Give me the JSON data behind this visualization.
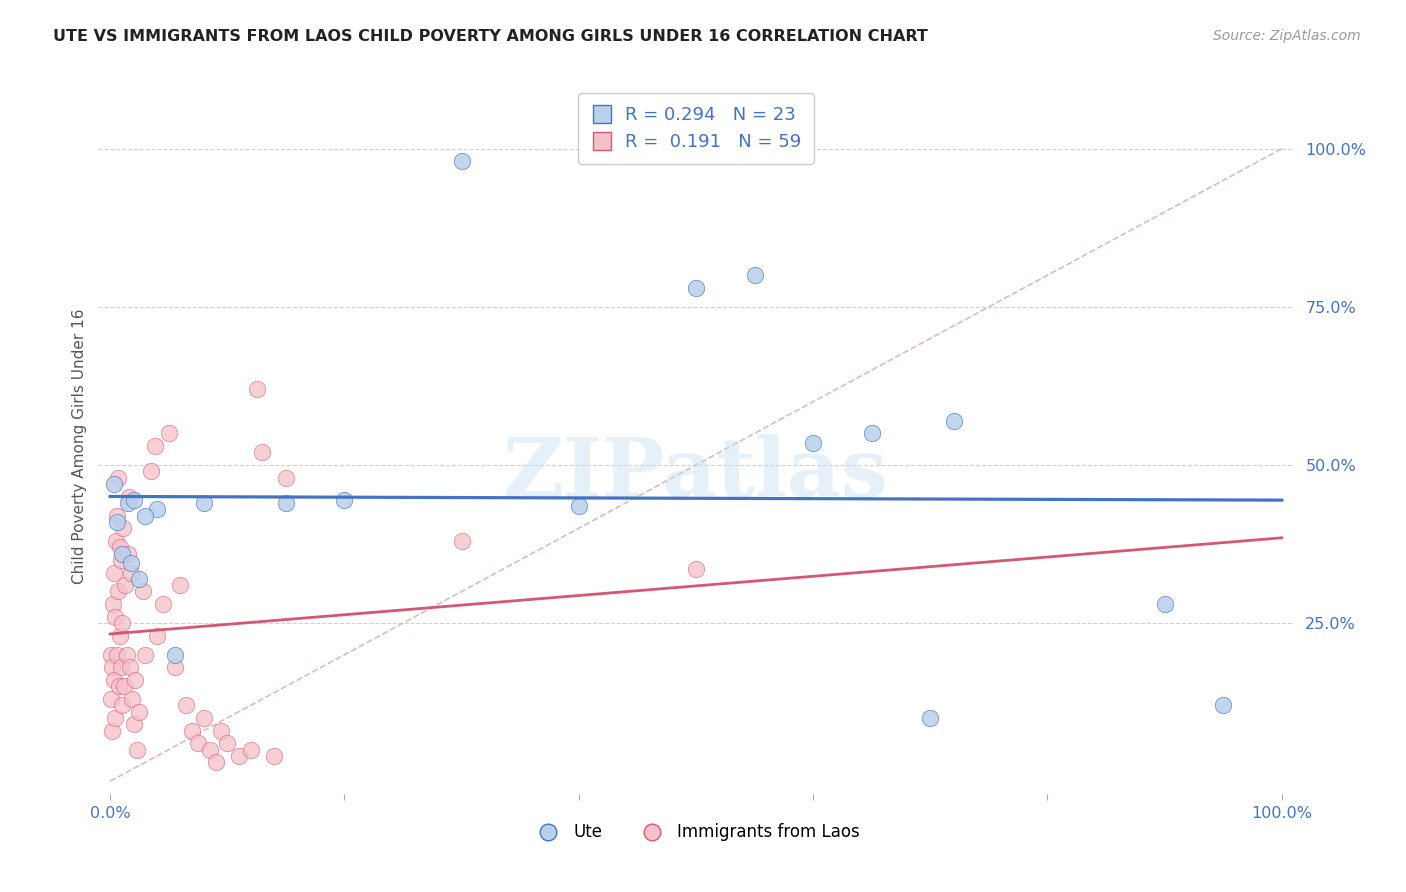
{
  "title": "UTE VS IMMIGRANTS FROM LAOS CHILD POVERTY AMONG GIRLS UNDER 16 CORRELATION CHART",
  "source": "Source: ZipAtlas.com",
  "ylabel": "Child Poverty Among Girls Under 16",
  "legend_label1": "Ute",
  "legend_label2": "Immigrants from Laos",
  "R_ute": "0.294",
  "N_ute": "23",
  "R_laos": "0.191",
  "N_laos": "59",
  "color_ute": "#b8d0ea",
  "color_laos": "#f5c0c8",
  "line_color_ute": "#4472c4",
  "line_color_laos": "#d45870",
  "ref_line_color": "#d4a8b0",
  "watermark": "ZIPatlas",
  "ute_x": [
    30.0,
    1.5,
    2.0,
    4.0,
    8.0,
    3.0,
    55.0,
    50.0,
    65.0,
    70.0,
    72.0,
    90.0,
    95.0,
    0.3,
    0.6,
    1.0,
    1.8,
    2.5,
    5.5,
    15.0,
    20.0,
    40.0,
    60.0
  ],
  "ute_y": [
    98.0,
    44.0,
    44.5,
    43.0,
    44.0,
    42.0,
    80.0,
    78.0,
    55.0,
    10.0,
    57.0,
    28.0,
    12.0,
    47.0,
    41.0,
    36.0,
    34.5,
    32.0,
    20.0,
    44.0,
    44.5,
    43.5,
    53.5
  ],
  "laos_x": [
    0.05,
    0.1,
    0.15,
    0.2,
    0.25,
    0.3,
    0.35,
    0.4,
    0.45,
    0.5,
    0.55,
    0.6,
    0.65,
    0.7,
    0.75,
    0.8,
    0.85,
    0.9,
    0.95,
    1.0,
    1.05,
    1.1,
    1.2,
    1.3,
    1.4,
    1.5,
    1.6,
    1.7,
    1.8,
    1.9,
    2.0,
    2.1,
    2.3,
    2.5,
    2.8,
    3.0,
    3.5,
    3.8,
    4.0,
    4.5,
    5.0,
    5.5,
    6.0,
    6.5,
    7.0,
    7.5,
    8.0,
    8.5,
    9.0,
    9.5,
    10.0,
    11.0,
    12.0,
    12.5,
    13.0,
    14.0,
    15.0,
    30.0,
    50.0
  ],
  "laos_y": [
    20.0,
    13.0,
    8.0,
    18.0,
    28.0,
    16.0,
    33.0,
    10.0,
    26.0,
    38.0,
    42.0,
    20.0,
    30.0,
    48.0,
    15.0,
    23.0,
    37.0,
    18.0,
    35.0,
    12.0,
    25.0,
    40.0,
    15.0,
    31.0,
    20.0,
    36.0,
    45.0,
    18.0,
    33.0,
    13.0,
    9.0,
    16.0,
    5.0,
    11.0,
    30.0,
    20.0,
    49.0,
    53.0,
    23.0,
    28.0,
    55.0,
    18.0,
    31.0,
    12.0,
    8.0,
    6.0,
    10.0,
    5.0,
    3.0,
    8.0,
    6.0,
    4.0,
    5.0,
    62.0,
    52.0,
    4.0,
    48.0,
    38.0,
    33.5
  ],
  "background_color": "#ffffff",
  "grid_color": "#d0d0d0",
  "title_fontsize": 11.5,
  "axis_fontsize": 11.5,
  "source_fontsize": 10
}
